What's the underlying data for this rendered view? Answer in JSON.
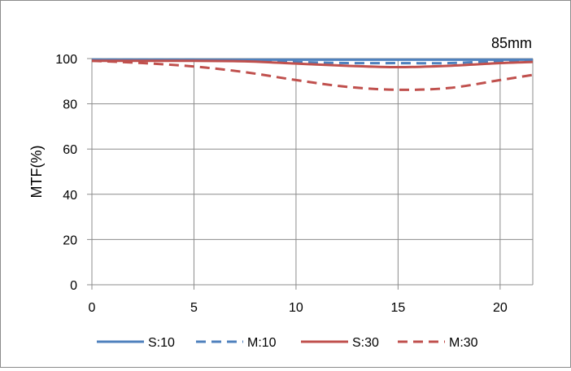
{
  "chart_data": {
    "type": "line",
    "annotation": "85mm",
    "ylabel": "MTF(%)",
    "xlabel": "",
    "xlim": [
      0,
      21.6
    ],
    "ylim": [
      0,
      100
    ],
    "xticks": [
      0,
      5,
      10,
      15,
      20
    ],
    "yticks": [
      0,
      20,
      40,
      60,
      80,
      100
    ],
    "grid": true,
    "legend_position": "bottom",
    "series": [
      {
        "name": "S:10",
        "color": "#4f81bd",
        "dash": "solid",
        "x": [
          0,
          2.5,
          5,
          7.5,
          10,
          12.5,
          15,
          17.5,
          20,
          21.6
        ],
        "y": [
          99.5,
          99.5,
          99.5,
          99.5,
          99.5,
          99.5,
          99.5,
          99.5,
          99.5,
          99.5
        ]
      },
      {
        "name": "M:10",
        "color": "#4f81bd",
        "dash": "dashed",
        "x": [
          0,
          2.5,
          5,
          7.5,
          10,
          12.5,
          15,
          17.5,
          20,
          21.6
        ],
        "y": [
          99.5,
          99.5,
          99.5,
          99.2,
          98.5,
          98,
          98,
          98,
          99,
          99.5
        ]
      },
      {
        "name": "S:30",
        "color": "#c0504d",
        "dash": "solid",
        "x": [
          0,
          2.5,
          5,
          7.5,
          10,
          12.5,
          15,
          17.5,
          20,
          21.6
        ],
        "y": [
          99,
          99,
          99,
          98.8,
          97.8,
          96.8,
          96.2,
          96.8,
          98,
          98.5
        ]
      },
      {
        "name": "M:30",
        "color": "#c0504d",
        "dash": "dashed",
        "x": [
          0,
          2.5,
          5,
          7.5,
          10,
          12.5,
          15,
          17.5,
          20,
          21.6
        ],
        "y": [
          99,
          98,
          96.5,
          94,
          90.5,
          87.5,
          86.2,
          87,
          90.5,
          92.8
        ]
      }
    ]
  }
}
